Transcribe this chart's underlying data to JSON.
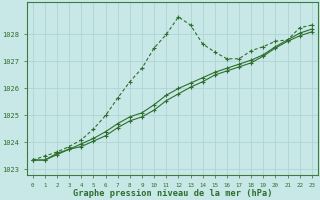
{
  "title": "Graphe pression niveau de la mer (hPa)",
  "bg_color": "#c8e8e8",
  "grid_color": "#b0d4d4",
  "line_color": "#2d6e2d",
  "spine_color": "#3d7a3d",
  "xlim": [
    -0.5,
    23.5
  ],
  "ylim": [
    1022.8,
    1029.2
  ],
  "yticks": [
    1023,
    1024,
    1025,
    1026,
    1027,
    1028
  ],
  "xticks": [
    0,
    1,
    2,
    3,
    4,
    5,
    6,
    7,
    8,
    9,
    10,
    11,
    12,
    13,
    14,
    15,
    16,
    17,
    18,
    19,
    20,
    21,
    22,
    23
  ],
  "series1_x": [
    0,
    1,
    2,
    3,
    4,
    5,
    6,
    7,
    8,
    9,
    10,
    11,
    12,
    13,
    14,
    15,
    16,
    17,
    18,
    19,
    20,
    21,
    22,
    23
  ],
  "series1_y": [
    1023.35,
    1023.35,
    1023.55,
    1023.75,
    1023.85,
    1024.05,
    1024.25,
    1024.55,
    1024.8,
    1024.95,
    1025.2,
    1025.55,
    1025.8,
    1026.05,
    1026.25,
    1026.5,
    1026.65,
    1026.8,
    1026.95,
    1027.2,
    1027.5,
    1027.75,
    1027.95,
    1028.1
  ],
  "series2_x": [
    0,
    1,
    2,
    3,
    4,
    5,
    6,
    7,
    8,
    9,
    10,
    11,
    12,
    13,
    14,
    15,
    16,
    17,
    18,
    19,
    20,
    21,
    22,
    23
  ],
  "series2_y": [
    1023.35,
    1023.35,
    1023.6,
    1023.75,
    1023.95,
    1024.15,
    1024.4,
    1024.7,
    1024.95,
    1025.1,
    1025.4,
    1025.75,
    1026.0,
    1026.2,
    1026.4,
    1026.6,
    1026.75,
    1026.9,
    1027.05,
    1027.25,
    1027.55,
    1027.8,
    1028.05,
    1028.2
  ],
  "series3_x": [
    0,
    1,
    2,
    3,
    4,
    5,
    6,
    7,
    8,
    9,
    10,
    11,
    12,
    13,
    14,
    15,
    16,
    17,
    18,
    19,
    20,
    21,
    22,
    23
  ],
  "series3_y": [
    1023.35,
    1023.5,
    1023.65,
    1023.85,
    1024.1,
    1024.5,
    1025.0,
    1025.65,
    1026.25,
    1026.75,
    1027.5,
    1028.0,
    1028.65,
    1028.35,
    1027.65,
    1027.35,
    1027.1,
    1027.1,
    1027.4,
    1027.55,
    1027.75,
    1027.8,
    1028.25,
    1028.35
  ]
}
